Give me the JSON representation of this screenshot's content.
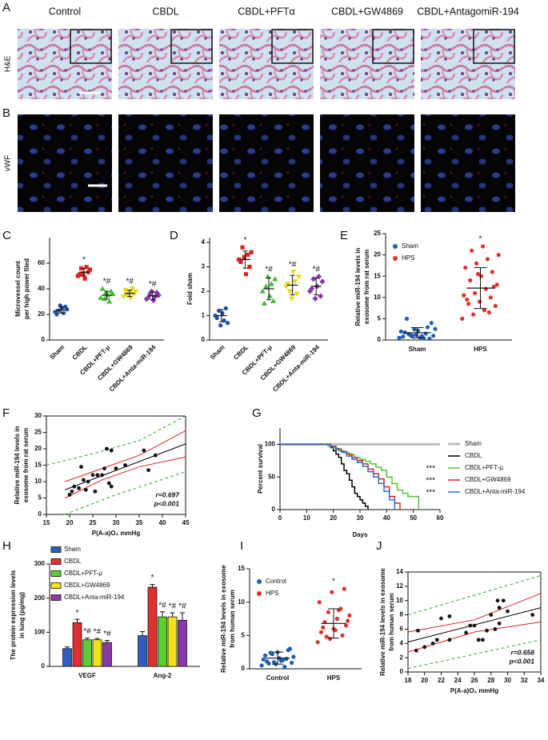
{
  "micrographs": {
    "panels": [
      "A",
      "B"
    ],
    "columns": [
      "Control",
      "CBDL",
      "CBDL+PFTα",
      "CBDL+GW4869",
      "CBDL+AntagomiR-194"
    ],
    "rows": [
      "H&E",
      "vWF"
    ]
  },
  "chart_data": [
    {
      "type": "dotplot",
      "panel": "C",
      "ylabel": [
        "Microvessel count",
        "per high power filed"
      ],
      "categories": [
        "Sham",
        "CBDL",
        "CBDL+PFT-μ",
        "CBDL+GW4869",
        "CBDL+Anta-miR-194"
      ],
      "colors": [
        "#1f4e9c",
        "#e02020",
        "#44bb33",
        "#e6d80a",
        "#8a3aa8"
      ],
      "markers": [
        "circle",
        "square",
        "triangle",
        "triangle-down",
        "diamond"
      ],
      "points": [
        [
          22,
          24,
          26,
          21,
          25,
          27,
          23,
          20
        ],
        [
          50,
          55,
          53,
          57,
          48,
          52,
          56,
          51
        ],
        [
          33,
          36,
          38,
          30,
          35,
          37,
          32,
          40
        ],
        [
          34,
          38,
          36,
          40,
          33,
          37,
          35,
          39
        ],
        [
          32,
          35,
          37,
          34,
          31,
          38,
          36,
          33
        ]
      ],
      "means": [
        23.5,
        53,
        35,
        36.5,
        34.5
      ],
      "sds": [
        2.5,
        3,
        3,
        2.5,
        3
      ],
      "significance": [
        null,
        "*",
        "*#",
        "*#",
        "*#"
      ],
      "rotate_labels": true,
      "ylim": [
        0,
        80
      ],
      "yticks": [
        0,
        20,
        40,
        60
      ]
    },
    {
      "type": "dotplot",
      "panel": "D",
      "ylabel": [
        "Fold sham"
      ],
      "categories": [
        "Sham",
        "CBDL",
        "CBDL+PFT-μ",
        "CBDL+GW4869",
        "CBDL+Anta-miR-194"
      ],
      "colors": [
        "#1f4e9c",
        "#e02020",
        "#44bb33",
        "#e6d80a",
        "#8a3aa8"
      ],
      "markers": [
        "circle",
        "square",
        "triangle",
        "triangle-down",
        "diamond"
      ],
      "points": [
        [
          1.0,
          0.7,
          1.3,
          0.8,
          1.1,
          0.6,
          1.2,
          0.9
        ],
        [
          3.3,
          3.6,
          3.0,
          3.5,
          2.7,
          3.4,
          3.8,
          3.2
        ],
        [
          2.0,
          2.5,
          1.6,
          2.3,
          1.8,
          2.6,
          2.2,
          1.5
        ],
        [
          2.2,
          2.6,
          1.9,
          2.4,
          2.8,
          1.7,
          2.0,
          2.3
        ],
        [
          2.0,
          2.4,
          1.8,
          2.6,
          2.2,
          1.7,
          2.5,
          2.1
        ]
      ],
      "means": [
        1.0,
        3.3,
        2.1,
        2.25,
        2.2
      ],
      "sds": [
        0.25,
        0.35,
        0.45,
        0.4,
        0.35
      ],
      "significance": [
        null,
        "*",
        "*#",
        "*#",
        "*#"
      ],
      "rotate_labels": true,
      "ylim": [
        0,
        4.2
      ],
      "yticks": [
        0,
        1,
        2,
        3,
        4
      ]
    },
    {
      "type": "dotplot",
      "panel": "E",
      "ylabel": [
        "Relative miR-194 levels in",
        "exosome from rat serum"
      ],
      "categories": [
        "Sham",
        "HPS"
      ],
      "colors": [
        "#1f5fb0",
        "#e03030"
      ],
      "legend": true,
      "points": [
        [
          0.5,
          1,
          1.5,
          2,
          2.5,
          3,
          0.8,
          1.2,
          0.3,
          1.8,
          2.2,
          4,
          5,
          0.6,
          1,
          1.4,
          0.9,
          2.6,
          1.1,
          0.4
        ],
        [
          5,
          6,
          7,
          8,
          8.5,
          9,
          10,
          10.5,
          11,
          12,
          13,
          14,
          15,
          16,
          17,
          18,
          19,
          20,
          21,
          22,
          12.5,
          9.5,
          15.5,
          6.5
        ]
      ],
      "means": [
        1.7,
        12.2
      ],
      "sds": [
        1.2,
        4.8
      ],
      "significance": [
        null,
        "*"
      ],
      "ylim": [
        0,
        25
      ],
      "yticks": [
        0,
        5,
        10,
        15,
        20,
        25
      ]
    },
    {
      "type": "scatter",
      "panel": "F",
      "ylabel": [
        "Relative miR-194 levels in",
        "exosome from rat serum"
      ],
      "xlabel": "P(A-a)O₂ mmHg",
      "x": [
        20,
        20.5,
        21,
        22,
        22.5,
        23,
        23.5,
        24,
        25,
        25.5,
        26,
        27,
        27.5,
        28,
        28.5,
        29,
        29,
        30,
        32,
        36,
        37,
        38.5
      ],
      "y": [
        6,
        7,
        8.5,
        8,
        14.5,
        10.5,
        7.5,
        10,
        12,
        7,
        12,
        12,
        14,
        20,
        9.5,
        8.5,
        19.5,
        14,
        15,
        19.5,
        13.5,
        18
      ],
      "color": "#111111",
      "frame": true,
      "fit_lines": [
        {
          "color": "#000000",
          "style": "solid",
          "x": [
            19,
            45
          ],
          "y": [
            7.5,
            21.5
          ]
        },
        {
          "color": "#e02020",
          "style": "solid",
          "x": [
            19,
            27,
            35,
            45
          ],
          "y": [
            10,
            14,
            18,
            25.5
          ]
        },
        {
          "color": "#e02020",
          "style": "solid",
          "x": [
            19,
            27,
            35,
            45
          ],
          "y": [
            5,
            10.5,
            14.5,
            17.5
          ]
        },
        {
          "color": "#33aa33",
          "style": "dashed",
          "x": [
            15,
            25,
            35,
            45
          ],
          "y": [
            15,
            18.5,
            22.5,
            30
          ]
        },
        {
          "color": "#33aa33",
          "style": "dashed",
          "x": [
            19,
            30,
            45
          ],
          "y": [
            0,
            6,
            13
          ]
        }
      ],
      "stats": [
        "r=0.697",
        "p<0.001"
      ],
      "xlim": [
        15,
        45
      ],
      "xticks": [
        15,
        20,
        25,
        30,
        35,
        40,
        45
      ],
      "ylim": [
        0,
        30
      ],
      "yticks": [
        0,
        5,
        10,
        15,
        20,
        25,
        30
      ]
    },
    {
      "type": "survival",
      "panel": "G",
      "ylabel": [
        "Percent survival"
      ],
      "xlabel": "Days",
      "series": [
        {
          "name": "Sham",
          "color": "#bdbdbd",
          "x": [
            0,
            60
          ],
          "values": [
            100,
            100
          ]
        },
        {
          "name": "CBDL",
          "color": "#000000",
          "x": [
            0,
            19,
            20,
            21,
            22,
            23,
            24,
            25,
            26,
            27,
            28,
            29,
            30,
            31,
            32,
            33
          ],
          "values": [
            100,
            95,
            90,
            85,
            80,
            70,
            60,
            55,
            45,
            35,
            25,
            20,
            15,
            10,
            5,
            0
          ]
        },
        {
          "name": "CBDL+PFT-μ",
          "color": "#55c23a",
          "x": [
            0,
            18,
            20,
            22,
            24,
            26,
            28,
            30,
            32,
            34,
            36,
            38,
            40,
            42,
            44,
            46,
            48,
            52
          ],
          "values": [
            100,
            97,
            94,
            90,
            87,
            84,
            80,
            77,
            74,
            70,
            65,
            60,
            50,
            40,
            30,
            25,
            20,
            0
          ]
        },
        {
          "name": "CBDL+GW4869",
          "color": "#e02020",
          "x": [
            0,
            19,
            21,
            23,
            25,
            27,
            29,
            31,
            33,
            35,
            37,
            39,
            41,
            43,
            45
          ],
          "values": [
            100,
            97,
            93,
            89,
            85,
            80,
            75,
            70,
            62,
            55,
            47,
            35,
            20,
            10,
            0
          ]
        },
        {
          "name": "CBDL+Anta-miR-194",
          "color": "#2f6fd0",
          "x": [
            0,
            19,
            21,
            23,
            25,
            27,
            29,
            31,
            33,
            35,
            37,
            39,
            41,
            43
          ],
          "values": [
            100,
            96,
            92,
            88,
            82,
            77,
            72,
            66,
            58,
            50,
            40,
            28,
            15,
            0
          ]
        }
      ],
      "markers": [
        null,
        null,
        "***",
        "***",
        "***"
      ],
      "xlim": [
        0,
        60
      ],
      "xticks": [
        0,
        10,
        20,
        30,
        40,
        50,
        60
      ],
      "ylim": [
        0,
        125
      ],
      "yticks": [
        0,
        50,
        100
      ]
    },
    {
      "type": "bar",
      "panel": "H",
      "ylabel": [
        "The protein expression levels",
        "in lung (pg/mg)"
      ],
      "categories": [
        "VEGF",
        "Ang-2"
      ],
      "series": [
        {
          "name": "Sham",
          "color": "#2f5fbf",
          "values": [
            52,
            90
          ],
          "errors": [
            5,
            12
          ],
          "labels": [
            null,
            null
          ]
        },
        {
          "name": "CBDL",
          "color": "#e03030",
          "values": [
            128,
            232
          ],
          "errors": [
            10,
            8
          ],
          "labels": [
            "*",
            "*"
          ]
        },
        {
          "name": "CBDL+PFT-μ",
          "color": "#5ccf2e",
          "values": [
            78,
            145
          ],
          "errors": [
            5,
            15
          ],
          "labels": [
            "*#",
            "*#"
          ]
        },
        {
          "name": "CBDL+GW4869",
          "color": "#f0e21a",
          "values": [
            78,
            145
          ],
          "errors": [
            4,
            12
          ],
          "labels": [
            "*#",
            "*#"
          ]
        },
        {
          "name": "CBDL+Anta-miR-194",
          "color": "#8a3aa8",
          "values": [
            70,
            135
          ],
          "errors": [
            6,
            22
          ],
          "labels": [
            "*#",
            "*#"
          ]
        }
      ],
      "ylim": [
        0,
        300
      ],
      "yticks": [
        0,
        100,
        200,
        300
      ]
    },
    {
      "type": "dotplot",
      "panel": "I",
      "ylabel": [
        "Relative miR-194 levels in exosome",
        "from human serum"
      ],
      "categories": [
        "Control",
        "HPS"
      ],
      "colors": [
        "#1f5fb0",
        "#e03030"
      ],
      "legend": true,
      "points": [
        [
          0.5,
          1,
          1.5,
          2,
          2.5,
          3,
          0.8,
          1.2,
          1.8,
          2.2,
          0.3,
          1.4,
          0.7,
          2.8,
          1.1,
          1.6,
          0.9,
          2.4,
          1.3
        ],
        [
          4,
          4.5,
          5,
          5.5,
          6,
          6.5,
          7,
          7.5,
          8,
          8.5,
          9,
          10,
          11.5,
          12,
          6.2,
          5.8,
          7.2,
          4.8,
          8.8
        ]
      ],
      "means": [
        1.6,
        6.8
      ],
      "sds": [
        0.9,
        2.2
      ],
      "significance": [
        null,
        "*"
      ],
      "ylim": [
        0,
        15
      ],
      "yticks": [
        0,
        5,
        10,
        15
      ]
    },
    {
      "type": "scatter",
      "panel": "J",
      "ylabel": [
        "Relative miR-194 levels in exosome",
        "from human serum"
      ],
      "xlabel": "P(A-a)O₂ mmHg",
      "x": [
        19,
        19.2,
        20,
        21,
        21.5,
        22,
        23,
        23,
        25,
        25.5,
        26,
        26.5,
        27,
        27.5,
        28,
        28.5,
        28.8,
        29,
        29,
        29.5,
        30,
        33
      ],
      "y": [
        3,
        5.8,
        3.5,
        4,
        4.5,
        7.5,
        4.5,
        7.8,
        5.5,
        6.5,
        6.5,
        4.5,
        4.5,
        5.8,
        8,
        6,
        10,
        9,
        6.8,
        10,
        8.5,
        8
      ],
      "color": "#111111",
      "frame": true,
      "fit_lines": [
        {
          "color": "#000000",
          "style": "solid",
          "x": [
            18,
            34
          ],
          "y": [
            4.2,
            9
          ]
        },
        {
          "color": "#e02020",
          "style": "solid",
          "x": [
            18,
            26,
            34
          ],
          "y": [
            5.6,
            7.3,
            11
          ]
        },
        {
          "color": "#e02020",
          "style": "solid",
          "x": [
            18,
            26,
            34
          ],
          "y": [
            2.8,
            5.6,
            7
          ]
        },
        {
          "color": "#33aa33",
          "style": "dashed",
          "x": [
            18,
            34
          ],
          "y": [
            8,
            13.5
          ]
        },
        {
          "color": "#33aa33",
          "style": "dashed",
          "x": [
            18,
            34
          ],
          "y": [
            0.5,
            4.5
          ]
        }
      ],
      "stats": [
        "r=0.658",
        "p<0.001"
      ],
      "xlim": [
        18,
        34
      ],
      "xticks": [
        18,
        20,
        22,
        24,
        26,
        28,
        30,
        32,
        34
      ],
      "ylim": [
        0,
        14
      ],
      "yticks": [
        0,
        2,
        4,
        6,
        8,
        10,
        12,
        14
      ]
    }
  ]
}
